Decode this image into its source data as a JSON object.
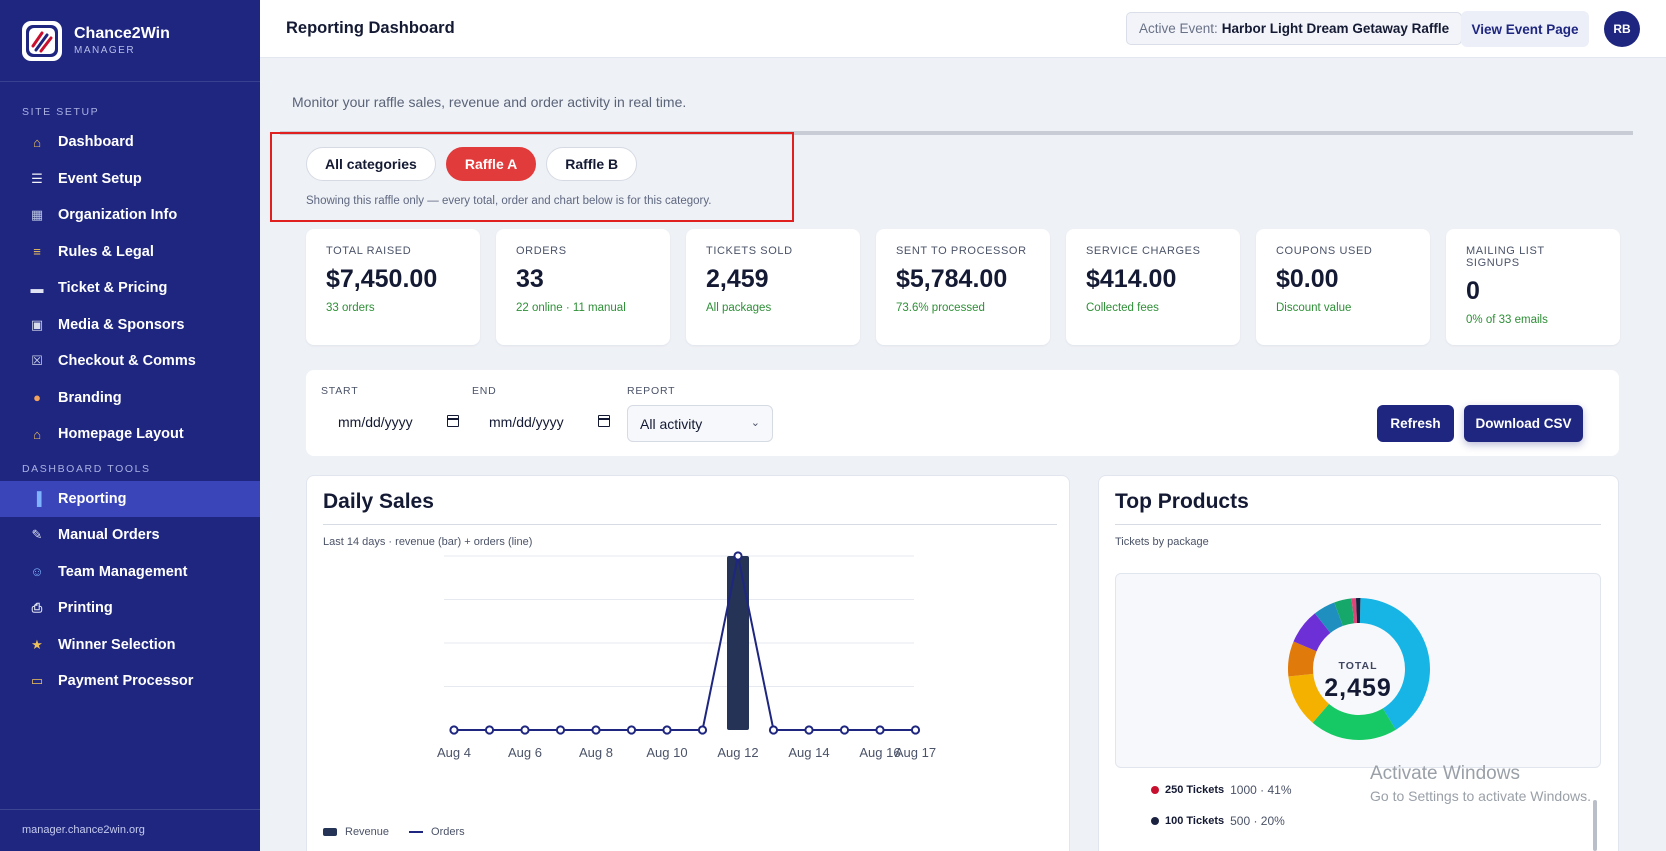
{
  "brand": {
    "name": "Chance2Win",
    "sub": "MANAGER"
  },
  "sidebar": {
    "site_setup_title": "SITE SETUP",
    "site_setup": [
      {
        "label": "Dashboard",
        "icon": "house-icon"
      },
      {
        "label": "Event Setup",
        "icon": "clipboard-icon"
      },
      {
        "label": "Organization Info",
        "icon": "building-icon"
      },
      {
        "label": "Rules & Legal",
        "icon": "scroll-icon"
      },
      {
        "label": "Ticket & Pricing",
        "icon": "ticket-icon"
      },
      {
        "label": "Media & Sponsors",
        "icon": "image-icon"
      },
      {
        "label": "Checkout & Comms",
        "icon": "cart-icon"
      },
      {
        "label": "Branding",
        "icon": "palette-icon"
      },
      {
        "label": "Homepage Layout",
        "icon": "house-icon"
      }
    ],
    "tools_title": "DASHBOARD TOOLS",
    "tools": [
      {
        "label": "Reporting",
        "icon": "bar-chart-icon",
        "active": true
      },
      {
        "label": "Manual Orders",
        "icon": "pen-icon"
      },
      {
        "label": "Team Management",
        "icon": "user-icon"
      },
      {
        "label": "Printing",
        "icon": "printer-icon"
      },
      {
        "label": "Winner Selection",
        "icon": "trophy-icon"
      },
      {
        "label": "Payment Processor",
        "icon": "credit-card-icon"
      }
    ],
    "footer": "manager.chance2win.org"
  },
  "header": {
    "title": "Reporting Dashboard",
    "active_event_label": "Active Event:",
    "active_event_value": "Harbor Light Dream Getaway Raffle",
    "view_button": "View Event Page",
    "avatar_initials": "RB"
  },
  "main": {
    "subtitle": "Monitor your raffle sales, revenue and order activity in real time.",
    "filters": [
      {
        "label": "All categories",
        "active": false
      },
      {
        "label": "Raffle A",
        "active": true
      },
      {
        "label": "Raffle B",
        "active": false
      }
    ],
    "filter_note": "Showing this raffle only — every total, order and chart below is for this category.",
    "stats": [
      {
        "label": "TOTAL RAISED",
        "value": "$7,450.00",
        "sub": "33 orders"
      },
      {
        "label": "ORDERS",
        "value": "33",
        "sub": "22 online · 11 manual"
      },
      {
        "label": "TICKETS SOLD",
        "value": "2,459",
        "sub": "All packages"
      },
      {
        "label": "SENT TO PROCESSOR",
        "value": "$5,784.00",
        "sub": "73.6% processed"
      },
      {
        "label": "SERVICE CHARGES",
        "value": "$414.00",
        "sub": "Collected fees"
      },
      {
        "label": "COUPONS USED",
        "value": "$0.00",
        "sub": "Discount value"
      },
      {
        "label": "MAILING LIST SIGNUPS",
        "value": "0",
        "sub": "0% of 33 emails"
      }
    ],
    "controls": {
      "start_label": "START",
      "start_placeholder": "mm/dd/yyyy",
      "end_label": "END",
      "end_placeholder": "mm/dd/yyyy",
      "report_label": "REPORT",
      "report_value": "All activity",
      "refresh": "Refresh",
      "download": "Download CSV"
    },
    "daily_sales": {
      "title": "Daily Sales",
      "subtitle": "Last 14 days · revenue (bar) + orders (line)",
      "legend_revenue": "Revenue",
      "legend_orders": "Orders"
    },
    "top_products": {
      "title": "Top Products",
      "subtitle": "Tickets by package",
      "total_label": "TOTAL",
      "total_value": "2,459",
      "legend": [
        {
          "name": "250 Tickets",
          "value": "1000 · 41%",
          "color": "#c8102e"
        },
        {
          "name": "100 Tickets",
          "value": "500 · 20%",
          "color": "#1a2240"
        }
      ]
    }
  },
  "chart_data": [
    {
      "type": "bar",
      "title": "Daily Sales",
      "x": [
        "Aug 4",
        "Aug 5",
        "Aug 6",
        "Aug 7",
        "Aug 8",
        "Aug 9",
        "Aug 10",
        "Aug 11",
        "Aug 12",
        "Aug 13",
        "Aug 14",
        "Aug 15",
        "Aug 16",
        "Aug 17"
      ],
      "tick_labels": [
        "Aug 4",
        "Aug 6",
        "Aug 8",
        "Aug 10",
        "Aug 12",
        "Aug 14",
        "Aug 16",
        "Aug 17"
      ],
      "series": [
        {
          "name": "Revenue",
          "type": "bar",
          "values": [
            0,
            0,
            0,
            0,
            0,
            0,
            0,
            0,
            7450,
            0,
            0,
            0,
            0,
            0
          ],
          "color": "#243356"
        },
        {
          "name": "Orders",
          "type": "line",
          "values": [
            0,
            0,
            0,
            0,
            0,
            0,
            0,
            0,
            33,
            0,
            0,
            0,
            0,
            0
          ],
          "color": "#1e2680"
        }
      ],
      "grid": true,
      "axis_labels_visible": false
    },
    {
      "type": "pie",
      "title": "Top Products",
      "donut": true,
      "slices": [
        {
          "value": 41,
          "color": "#17b5e6"
        },
        {
          "value": 20,
          "color": "#17c964"
        },
        {
          "value": 12,
          "color": "#f5b100"
        },
        {
          "value": 8,
          "color": "#e07a0a"
        },
        {
          "value": 8,
          "color": "#6d2fd6"
        },
        {
          "value": 5,
          "color": "#1e8fbe"
        },
        {
          "value": 4,
          "color": "#16a86a"
        },
        {
          "value": 1,
          "color": "#e0457a"
        },
        {
          "value": 1,
          "color": "#1a2240"
        }
      ]
    }
  ]
}
